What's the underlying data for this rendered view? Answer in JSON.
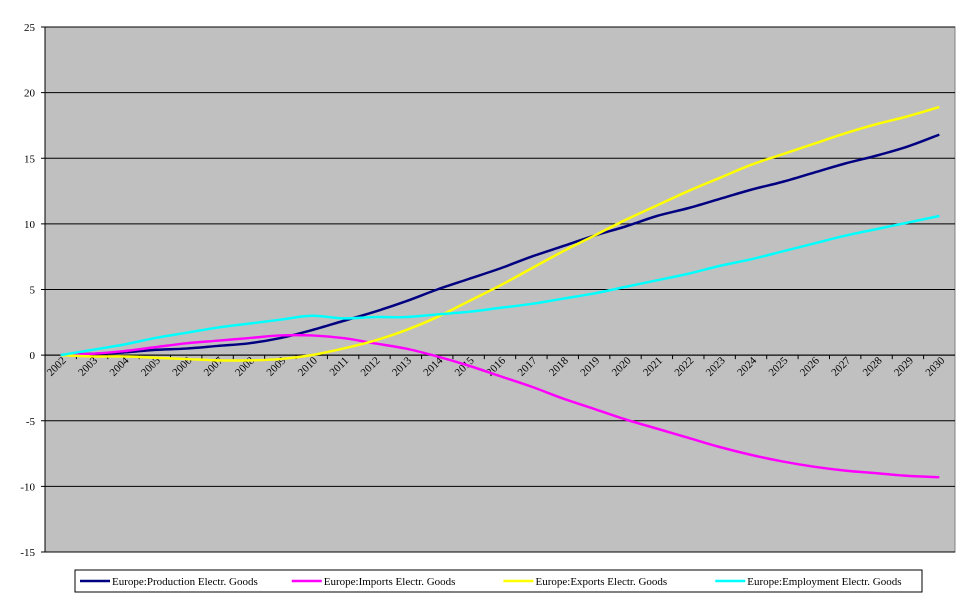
{
  "chart_data": {
    "type": "line",
    "categories": [
      "2002",
      "2003",
      "2004",
      "2005",
      "2006",
      "2007",
      "2008",
      "2009",
      "2010",
      "2011",
      "2012",
      "2013",
      "2014",
      "2015",
      "2016",
      "2017",
      "2018",
      "2019",
      "2020",
      "2021",
      "2022",
      "2023",
      "2024",
      "2025",
      "2026",
      "2027",
      "2028",
      "2029",
      "2030"
    ],
    "series": [
      {
        "name": "Europe:Production Electr. Goods",
        "color": "#000080",
        "values": [
          0,
          0.1,
          0.2,
          0.4,
          0.5,
          0.7,
          0.9,
          1.3,
          1.9,
          2.6,
          3.3,
          4.1,
          5.0,
          5.8,
          6.6,
          7.5,
          8.3,
          9.1,
          9.8,
          10.6,
          11.2,
          11.9,
          12.6,
          13.2,
          13.9,
          14.6,
          15.2,
          15.9,
          16.8
        ]
      },
      {
        "name": "Europe:Imports Electr. Goods",
        "color": "#ff00ff",
        "values": [
          0,
          0.1,
          0.3,
          0.6,
          0.9,
          1.1,
          1.3,
          1.5,
          1.5,
          1.3,
          0.9,
          0.5,
          -0.1,
          -0.8,
          -1.6,
          -2.4,
          -3.3,
          -4.1,
          -4.9,
          -5.6,
          -6.3,
          -7.0,
          -7.6,
          -8.1,
          -8.5,
          -8.8,
          -9.0,
          -9.2,
          -9.3
        ]
      },
      {
        "name": "Europe:Exports Electr. Goods",
        "color": "#ffff00",
        "values": [
          0,
          -0.1,
          -0.1,
          -0.2,
          -0.3,
          -0.4,
          -0.4,
          -0.3,
          0.0,
          0.5,
          1.1,
          1.9,
          2.9,
          4.1,
          5.3,
          6.6,
          7.9,
          9.1,
          10.3,
          11.4,
          12.5,
          13.5,
          14.5,
          15.3,
          16.1,
          16.9,
          17.6,
          18.2,
          18.9
        ]
      },
      {
        "name": "Europe:Employment Electr. Goods",
        "color": "#00ffff",
        "values": [
          0,
          0.4,
          0.8,
          1.3,
          1.7,
          2.1,
          2.4,
          2.7,
          3.0,
          2.8,
          2.9,
          2.9,
          3.1,
          3.3,
          3.6,
          3.9,
          4.3,
          4.7,
          5.2,
          5.7,
          6.2,
          6.8,
          7.3,
          7.9,
          8.5,
          9.1,
          9.6,
          10.1,
          10.6
        ]
      }
    ],
    "ylim": [
      -15,
      25
    ],
    "yticks": [
      -15,
      -10,
      -5,
      0,
      5,
      10,
      15,
      20,
      25
    ],
    "grid": true,
    "legend": "bottom"
  }
}
